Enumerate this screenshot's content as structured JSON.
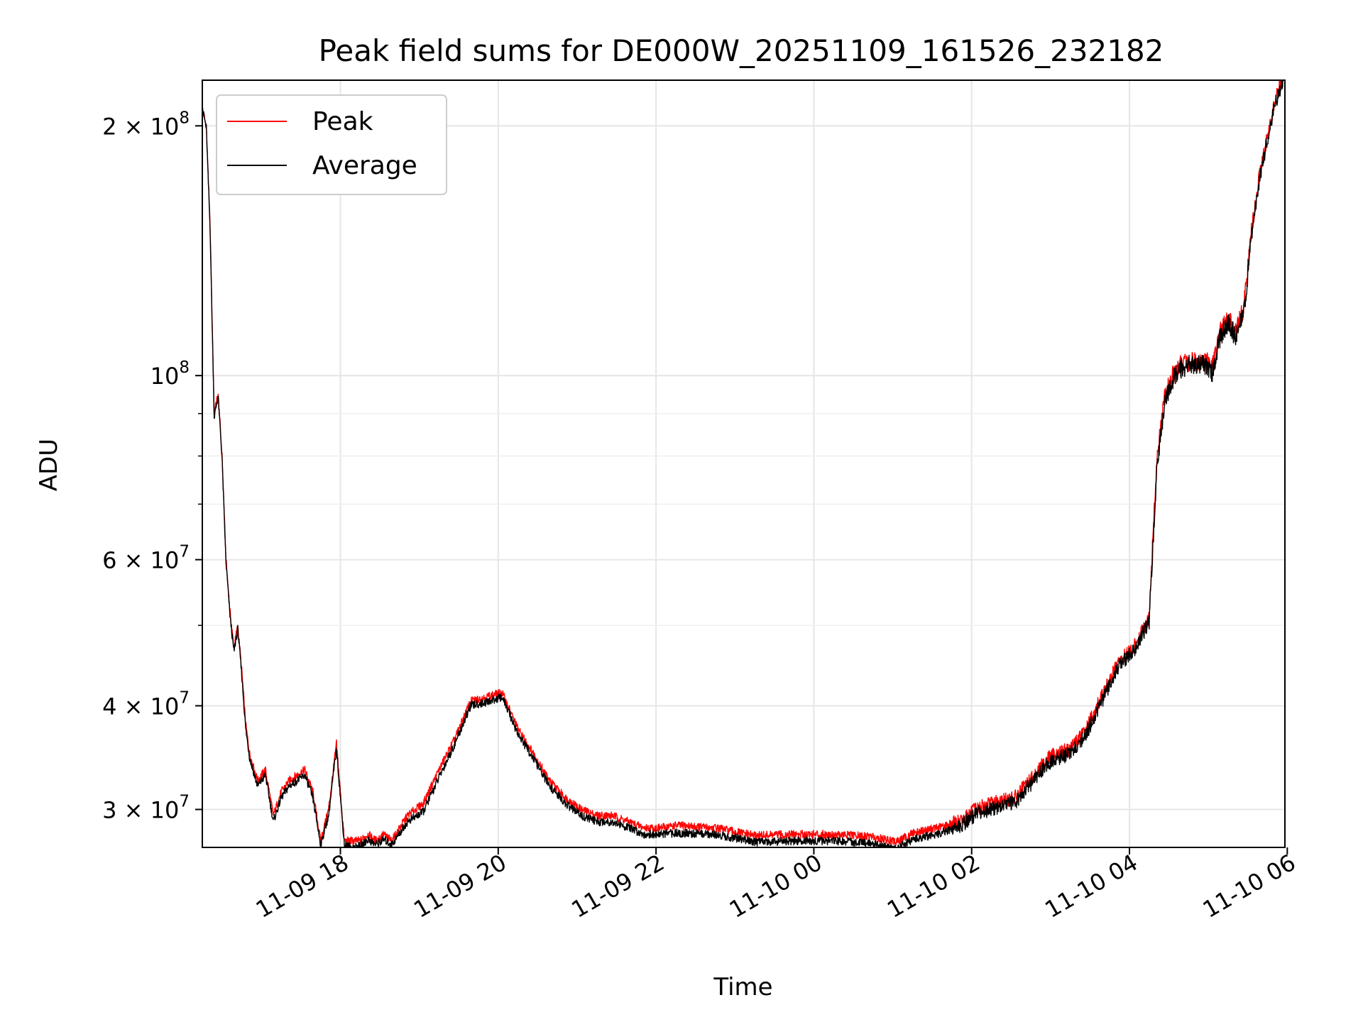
{
  "chart_data": {
    "type": "line",
    "title": "Peak field sums for DE000W_20251109_161526_232182",
    "xlabel": "Time",
    "ylabel": "ADU",
    "yscale": "log",
    "grid": true,
    "legend_position": "top-left",
    "x_unit": "hours since 2025-11-09 16:15",
    "xlim": [
      0,
      13.72
    ],
    "ylim": [
      27000000,
      227000000
    ],
    "x_ticks": [
      {
        "pos": 1.75,
        "label": "11-09 18"
      },
      {
        "pos": 3.75,
        "label": "11-09 20"
      },
      {
        "pos": 5.75,
        "label": "11-09 22"
      },
      {
        "pos": 7.75,
        "label": "11-10 00"
      },
      {
        "pos": 9.75,
        "label": "11-10 02"
      },
      {
        "pos": 11.75,
        "label": "11-10 04"
      },
      {
        "pos": 13.75,
        "label": "11-10 06"
      }
    ],
    "y_ticks": [
      {
        "value": 30000000,
        "mant": "3",
        "exp": "7"
      },
      {
        "value": 40000000,
        "mant": "4",
        "exp": "7"
      },
      {
        "value": 60000000,
        "mant": "6",
        "exp": "7"
      },
      {
        "value": 100000000,
        "mant": "",
        "exp": "8"
      },
      {
        "value": 200000000,
        "mant": "2",
        "exp": "8"
      }
    ],
    "y_minor_ticks": [
      50000000,
      70000000,
      80000000,
      90000000
    ],
    "series": [
      {
        "name": "Peak",
        "color": "#ff0000",
        "x": [
          0.0,
          0.05,
          0.1,
          0.15,
          0.2,
          0.25,
          0.3,
          0.35,
          0.4,
          0.45,
          0.5,
          0.55,
          0.6,
          0.7,
          0.8,
          0.9,
          1.0,
          1.1,
          1.2,
          1.3,
          1.4,
          1.5,
          1.6,
          1.7,
          1.8,
          1.9,
          2.0,
          2.1,
          2.2,
          2.3,
          2.4,
          2.6,
          2.8,
          3.0,
          3.2,
          3.4,
          3.6,
          3.8,
          4.0,
          4.2,
          4.4,
          4.6,
          4.8,
          5.0,
          5.2,
          5.4,
          5.6,
          5.8,
          6.0,
          6.5,
          7.0,
          7.5,
          8.0,
          8.5,
          8.8,
          9.0,
          9.3,
          9.6,
          9.8,
          10.0,
          10.3,
          10.6,
          10.7,
          10.8,
          11.0,
          11.2,
          11.4,
          11.6,
          11.8,
          12.0,
          12.05,
          12.1,
          12.2,
          12.3,
          12.4,
          12.5,
          12.6,
          12.7,
          12.8,
          12.9,
          13.0,
          13.1,
          13.2,
          13.3,
          13.4,
          13.5,
          13.6,
          13.7
        ],
        "values": [
          210000000,
          200000000,
          150000000,
          90000000,
          95000000,
          80000000,
          60000000,
          52000000,
          47000000,
          50000000,
          44000000,
          38000000,
          35000000,
          32500000,
          33500000,
          29500000,
          31500000,
          32500000,
          33000000,
          33500000,
          31500000,
          27500000,
          30000000,
          36000000,
          27500000,
          27500000,
          27500000,
          28000000,
          27500000,
          28000000,
          27500000,
          29500000,
          30500000,
          33500000,
          36500000,
          40500000,
          41000000,
          41500000,
          37500000,
          35000000,
          32500000,
          31000000,
          30000000,
          29500000,
          29500000,
          29000000,
          28500000,
          28500000,
          28700000,
          28500000,
          27900000,
          28000000,
          28000000,
          27800000,
          27400000,
          28100000,
          28500000,
          29000000,
          30000000,
          30500000,
          31000000,
          33500000,
          34500000,
          35000000,
          35500000,
          37500000,
          41000000,
          45000000,
          47000000,
          51000000,
          65000000,
          80000000,
          95000000,
          100000000,
          103000000,
          104000000,
          104000000,
          104000000,
          103000000,
          113000000,
          117000000,
          113000000,
          121000000,
          150000000,
          175000000,
          195000000,
          215000000,
          230000000
        ]
      },
      {
        "name": "Average",
        "color": "#000000",
        "x": [
          0.0,
          0.05,
          0.1,
          0.15,
          0.2,
          0.25,
          0.3,
          0.35,
          0.4,
          0.45,
          0.5,
          0.55,
          0.6,
          0.7,
          0.8,
          0.9,
          1.0,
          1.1,
          1.2,
          1.3,
          1.4,
          1.5,
          1.6,
          1.7,
          1.8,
          1.9,
          2.0,
          2.1,
          2.2,
          2.3,
          2.4,
          2.6,
          2.8,
          3.0,
          3.2,
          3.4,
          3.6,
          3.8,
          4.0,
          4.2,
          4.4,
          4.6,
          4.8,
          5.0,
          5.2,
          5.4,
          5.6,
          5.8,
          6.0,
          6.5,
          7.0,
          7.5,
          8.0,
          8.5,
          8.8,
          9.0,
          9.3,
          9.6,
          9.8,
          10.0,
          10.3,
          10.6,
          10.7,
          10.8,
          11.0,
          11.2,
          11.4,
          11.6,
          11.8,
          12.0,
          12.05,
          12.1,
          12.2,
          12.3,
          12.4,
          12.5,
          12.6,
          12.7,
          12.8,
          12.9,
          13.0,
          13.1,
          13.2,
          13.3,
          13.4,
          13.5,
          13.6,
          13.7
        ],
        "values": [
          210000000,
          199000000,
          149000000,
          89000000,
          94500000,
          79500000,
          59500000,
          51500000,
          46500000,
          49500000,
          43500000,
          37500000,
          34600000,
          32000000,
          33000000,
          29000000,
          31000000,
          32000000,
          32500000,
          33000000,
          31000000,
          27200000,
          29500000,
          35500000,
          27200000,
          27000000,
          27100000,
          27600000,
          27200000,
          27600000,
          27200000,
          29000000,
          29800000,
          32800000,
          36000000,
          40000000,
          40400000,
          41000000,
          37000000,
          34500000,
          32000000,
          30500000,
          29500000,
          29000000,
          29000000,
          28500000,
          28000000,
          28000000,
          28100000,
          28000000,
          27400000,
          27500000,
          27500000,
          27300000,
          26900000,
          27600000,
          28000000,
          28600000,
          29600000,
          30000000,
          30600000,
          33000000,
          34000000,
          34500000,
          35000000,
          37000000,
          40500000,
          44500000,
          46500000,
          50500000,
          63000000,
          78000000,
          93000000,
          99000000,
          102000000,
          103000000,
          103000000,
          103000000,
          101000000,
          111000000,
          116000000,
          111000000,
          119000000,
          148000000,
          173000000,
          193000000,
          213000000,
          228000000
        ]
      }
    ]
  }
}
